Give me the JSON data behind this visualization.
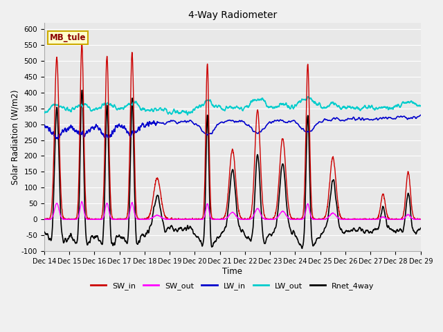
{
  "title": "4-Way Radiometer",
  "xlabel": "Time",
  "ylabel": "Solar Radiation (W/m2)",
  "ylim": [
    -100,
    620
  ],
  "yticks": [
    -100,
    -50,
    0,
    50,
    100,
    150,
    200,
    250,
    300,
    350,
    400,
    450,
    500,
    550,
    600
  ],
  "station_label": "MB_tule",
  "legend": [
    "SW_in",
    "SW_out",
    "LW_in",
    "LW_out",
    "Rnet_4way"
  ],
  "colors": {
    "SW_in": "#cc0000",
    "SW_out": "#ff00ff",
    "LW_in": "#0000cc",
    "LW_out": "#00cccc",
    "Rnet_4way": "#000000"
  },
  "linewidths": {
    "SW_in": 1.0,
    "SW_out": 1.0,
    "LW_in": 1.2,
    "LW_out": 1.2,
    "Rnet_4way": 1.2
  },
  "n_points": 2160,
  "x_start": 14,
  "x_end": 29,
  "xtick_positions": [
    14,
    15,
    16,
    17,
    18,
    19,
    20,
    21,
    22,
    23,
    24,
    25,
    26,
    27,
    28,
    29
  ],
  "xtick_labels": [
    "Dec 14",
    "Dec 15",
    "Dec 16",
    "Dec 17",
    "Dec 18",
    "Dec 19",
    "Dec 20",
    "Dec 21",
    "Dec 22",
    "Dec 23",
    "Dec 24",
    "Dec 25",
    "Dec 26",
    "Dec 27",
    "Dec 28",
    "Dec 29"
  ],
  "bg_color": "#e8e8e8",
  "grid_color": "#ffffff",
  "fig_bg": "#f0f0f0"
}
